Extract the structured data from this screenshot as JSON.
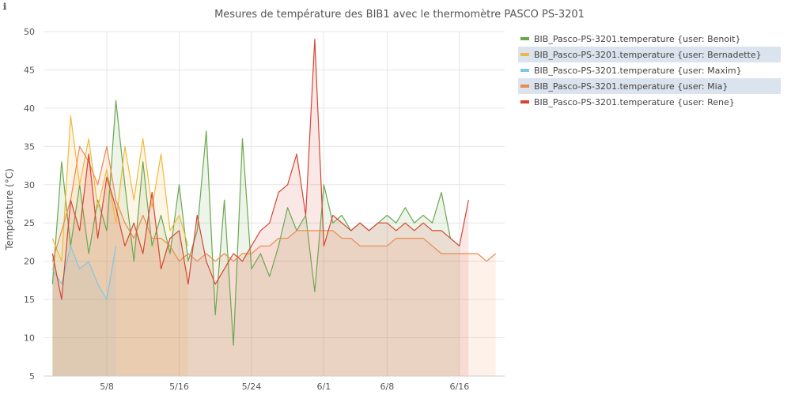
{
  "info_icon": "info-icon",
  "info_glyph": "ℹ",
  "chart_data": {
    "type": "area",
    "title": "Mesures de température des BIB1 avec le thermomètre PASCO PS-3201",
    "xlabel": "",
    "ylabel": "Température (°C)",
    "ylim": [
      5,
      50
    ],
    "xlim": [
      "2024-05-01",
      "2024-06-21"
    ],
    "y_ticks": [
      5,
      10,
      15,
      20,
      25,
      30,
      35,
      40,
      45,
      50
    ],
    "x_ticks": [
      {
        "date": "2024-05-08",
        "label": "5/8"
      },
      {
        "date": "2024-05-16",
        "label": "5/16"
      },
      {
        "date": "2024-05-24",
        "label": "5/24"
      },
      {
        "date": "2024-06-01",
        "label": "6/1"
      },
      {
        "date": "2024-06-08",
        "label": "6/8"
      },
      {
        "date": "2024-06-16",
        "label": "6/16"
      }
    ],
    "grid": true,
    "legend_position": "top-right",
    "series": [
      {
        "name": "BIB_Pasco-PS-3201.temperature {user: Benoit}",
        "color": "#6aa84f",
        "highlighted": false,
        "points": [
          [
            "2024-05-02",
            17
          ],
          [
            "2024-05-03",
            33
          ],
          [
            "2024-05-04",
            22
          ],
          [
            "2024-05-05",
            30
          ],
          [
            "2024-05-06",
            21
          ],
          [
            "2024-05-07",
            28
          ],
          [
            "2024-05-08",
            24
          ],
          [
            "2024-05-09",
            41
          ],
          [
            "2024-05-10",
            30
          ],
          [
            "2024-05-11",
            20
          ],
          [
            "2024-05-12",
            33
          ],
          [
            "2024-05-13",
            22
          ],
          [
            "2024-05-14",
            26
          ],
          [
            "2024-05-15",
            21
          ],
          [
            "2024-05-16",
            30
          ],
          [
            "2024-05-17",
            20
          ],
          [
            "2024-05-18",
            24
          ],
          [
            "2024-05-19",
            37
          ],
          [
            "2024-05-20",
            13
          ],
          [
            "2024-05-21",
            28
          ],
          [
            "2024-05-22",
            9
          ],
          [
            "2024-05-23",
            36
          ],
          [
            "2024-05-24",
            19
          ],
          [
            "2024-05-25",
            21
          ],
          [
            "2024-05-26",
            18
          ],
          [
            "2024-05-27",
            22
          ],
          [
            "2024-05-28",
            27
          ],
          [
            "2024-05-29",
            24
          ],
          [
            "2024-05-30",
            26
          ],
          [
            "2024-05-31",
            16
          ],
          [
            "2024-06-01",
            30
          ],
          [
            "2024-06-02",
            25
          ],
          [
            "2024-06-03",
            26
          ],
          [
            "2024-06-04",
            24
          ],
          [
            "2024-06-05",
            25
          ],
          [
            "2024-06-06",
            24
          ],
          [
            "2024-06-07",
            25
          ],
          [
            "2024-06-08",
            26
          ],
          [
            "2024-06-09",
            25
          ],
          [
            "2024-06-10",
            27
          ],
          [
            "2024-06-11",
            25
          ],
          [
            "2024-06-12",
            26
          ],
          [
            "2024-06-13",
            25
          ],
          [
            "2024-06-14",
            29
          ],
          [
            "2024-06-15",
            23
          ],
          [
            "2024-06-16",
            22
          ]
        ]
      },
      {
        "name": "BIB_Pasco-PS-3201.temperature {user: Bernadette}",
        "color": "#f1b93b",
        "highlighted": true,
        "points": [
          [
            "2024-05-02",
            23
          ],
          [
            "2024-05-03",
            20
          ],
          [
            "2024-05-04",
            39
          ],
          [
            "2024-05-05",
            30
          ],
          [
            "2024-05-06",
            36
          ],
          [
            "2024-05-07",
            27
          ],
          [
            "2024-05-08",
            32
          ],
          [
            "2024-05-09",
            25
          ],
          [
            "2024-05-10",
            35
          ],
          [
            "2024-05-11",
            28
          ],
          [
            "2024-05-12",
            36
          ],
          [
            "2024-05-13",
            27
          ],
          [
            "2024-05-14",
            34
          ],
          [
            "2024-05-15",
            24
          ],
          [
            "2024-05-16",
            26
          ],
          [
            "2024-05-17",
            22
          ]
        ]
      },
      {
        "name": "BIB_Pasco-PS-3201.temperature {user: Maxim}",
        "color": "#7ec8e3",
        "highlighted": false,
        "points": [
          [
            "2024-05-02",
            19
          ],
          [
            "2024-05-03",
            17
          ],
          [
            "2024-05-04",
            22
          ],
          [
            "2024-05-05",
            19
          ],
          [
            "2024-05-06",
            20
          ],
          [
            "2024-05-07",
            17
          ],
          [
            "2024-05-08",
            15
          ],
          [
            "2024-05-09",
            22
          ]
        ]
      },
      {
        "name": "BIB_Pasco-PS-3201.temperature {user: Mia}",
        "color": "#ec8a4d",
        "highlighted": true,
        "points": [
          [
            "2024-05-02",
            20
          ],
          [
            "2024-05-03",
            24
          ],
          [
            "2024-05-04",
            28
          ],
          [
            "2024-05-05",
            35
          ],
          [
            "2024-05-06",
            33
          ],
          [
            "2024-05-07",
            30
          ],
          [
            "2024-05-08",
            35
          ],
          [
            "2024-05-09",
            28
          ],
          [
            "2024-05-10",
            25
          ],
          [
            "2024-05-11",
            23
          ],
          [
            "2024-05-12",
            26
          ],
          [
            "2024-05-13",
            23
          ],
          [
            "2024-05-14",
            23
          ],
          [
            "2024-05-15",
            22
          ],
          [
            "2024-05-16",
            20
          ],
          [
            "2024-05-17",
            21
          ],
          [
            "2024-05-18",
            20
          ],
          [
            "2024-05-19",
            21
          ],
          [
            "2024-05-20",
            20
          ],
          [
            "2024-05-21",
            21
          ],
          [
            "2024-05-22",
            20
          ],
          [
            "2024-05-23",
            21
          ],
          [
            "2024-05-24",
            21
          ],
          [
            "2024-05-25",
            22
          ],
          [
            "2024-05-26",
            22
          ],
          [
            "2024-05-27",
            23
          ],
          [
            "2024-05-28",
            23
          ],
          [
            "2024-05-29",
            24
          ],
          [
            "2024-05-30",
            24
          ],
          [
            "2024-05-31",
            24
          ],
          [
            "2024-06-01",
            24
          ],
          [
            "2024-06-02",
            24
          ],
          [
            "2024-06-03",
            23
          ],
          [
            "2024-06-04",
            23
          ],
          [
            "2024-06-05",
            22
          ],
          [
            "2024-06-06",
            22
          ],
          [
            "2024-06-07",
            22
          ],
          [
            "2024-06-08",
            22
          ],
          [
            "2024-06-09",
            23
          ],
          [
            "2024-06-10",
            23
          ],
          [
            "2024-06-11",
            23
          ],
          [
            "2024-06-12",
            23
          ],
          [
            "2024-06-13",
            22
          ],
          [
            "2024-06-14",
            21
          ],
          [
            "2024-06-15",
            21
          ],
          [
            "2024-06-16",
            21
          ],
          [
            "2024-06-17",
            21
          ],
          [
            "2024-06-18",
            21
          ],
          [
            "2024-06-19",
            20
          ],
          [
            "2024-06-20",
            21
          ]
        ]
      },
      {
        "name": "BIB_Pasco-PS-3201.temperature {user: Rene}",
        "color": "#d64532",
        "highlighted": false,
        "points": [
          [
            "2024-05-02",
            21
          ],
          [
            "2024-05-03",
            15
          ],
          [
            "2024-05-04",
            28
          ],
          [
            "2024-05-05",
            24
          ],
          [
            "2024-05-06",
            34
          ],
          [
            "2024-05-07",
            23
          ],
          [
            "2024-05-08",
            31
          ],
          [
            "2024-05-09",
            27
          ],
          [
            "2024-05-10",
            22
          ],
          [
            "2024-05-11",
            25
          ],
          [
            "2024-05-12",
            21
          ],
          [
            "2024-05-13",
            29
          ],
          [
            "2024-05-14",
            19
          ],
          [
            "2024-05-15",
            23
          ],
          [
            "2024-05-16",
            24
          ],
          [
            "2024-05-17",
            17
          ],
          [
            "2024-05-18",
            26
          ],
          [
            "2024-05-19",
            20
          ],
          [
            "2024-05-20",
            17
          ],
          [
            "2024-05-21",
            19
          ],
          [
            "2024-05-22",
            21
          ],
          [
            "2024-05-23",
            20
          ],
          [
            "2024-05-24",
            22
          ],
          [
            "2024-05-25",
            24
          ],
          [
            "2024-05-26",
            25
          ],
          [
            "2024-05-27",
            29
          ],
          [
            "2024-05-28",
            30
          ],
          [
            "2024-05-29",
            34
          ],
          [
            "2024-05-30",
            26
          ],
          [
            "2024-05-31",
            49
          ],
          [
            "2024-06-01",
            22
          ],
          [
            "2024-06-02",
            26
          ],
          [
            "2024-06-03",
            25
          ],
          [
            "2024-06-04",
            24
          ],
          [
            "2024-06-05",
            25
          ],
          [
            "2024-06-06",
            24
          ],
          [
            "2024-06-07",
            25
          ],
          [
            "2024-06-08",
            25
          ],
          [
            "2024-06-09",
            24
          ],
          [
            "2024-06-10",
            25
          ],
          [
            "2024-06-11",
            24
          ],
          [
            "2024-06-12",
            25
          ],
          [
            "2024-06-13",
            24
          ],
          [
            "2024-06-14",
            24
          ],
          [
            "2024-06-15",
            23
          ],
          [
            "2024-06-16",
            22
          ],
          [
            "2024-06-17",
            28
          ]
        ]
      }
    ]
  }
}
